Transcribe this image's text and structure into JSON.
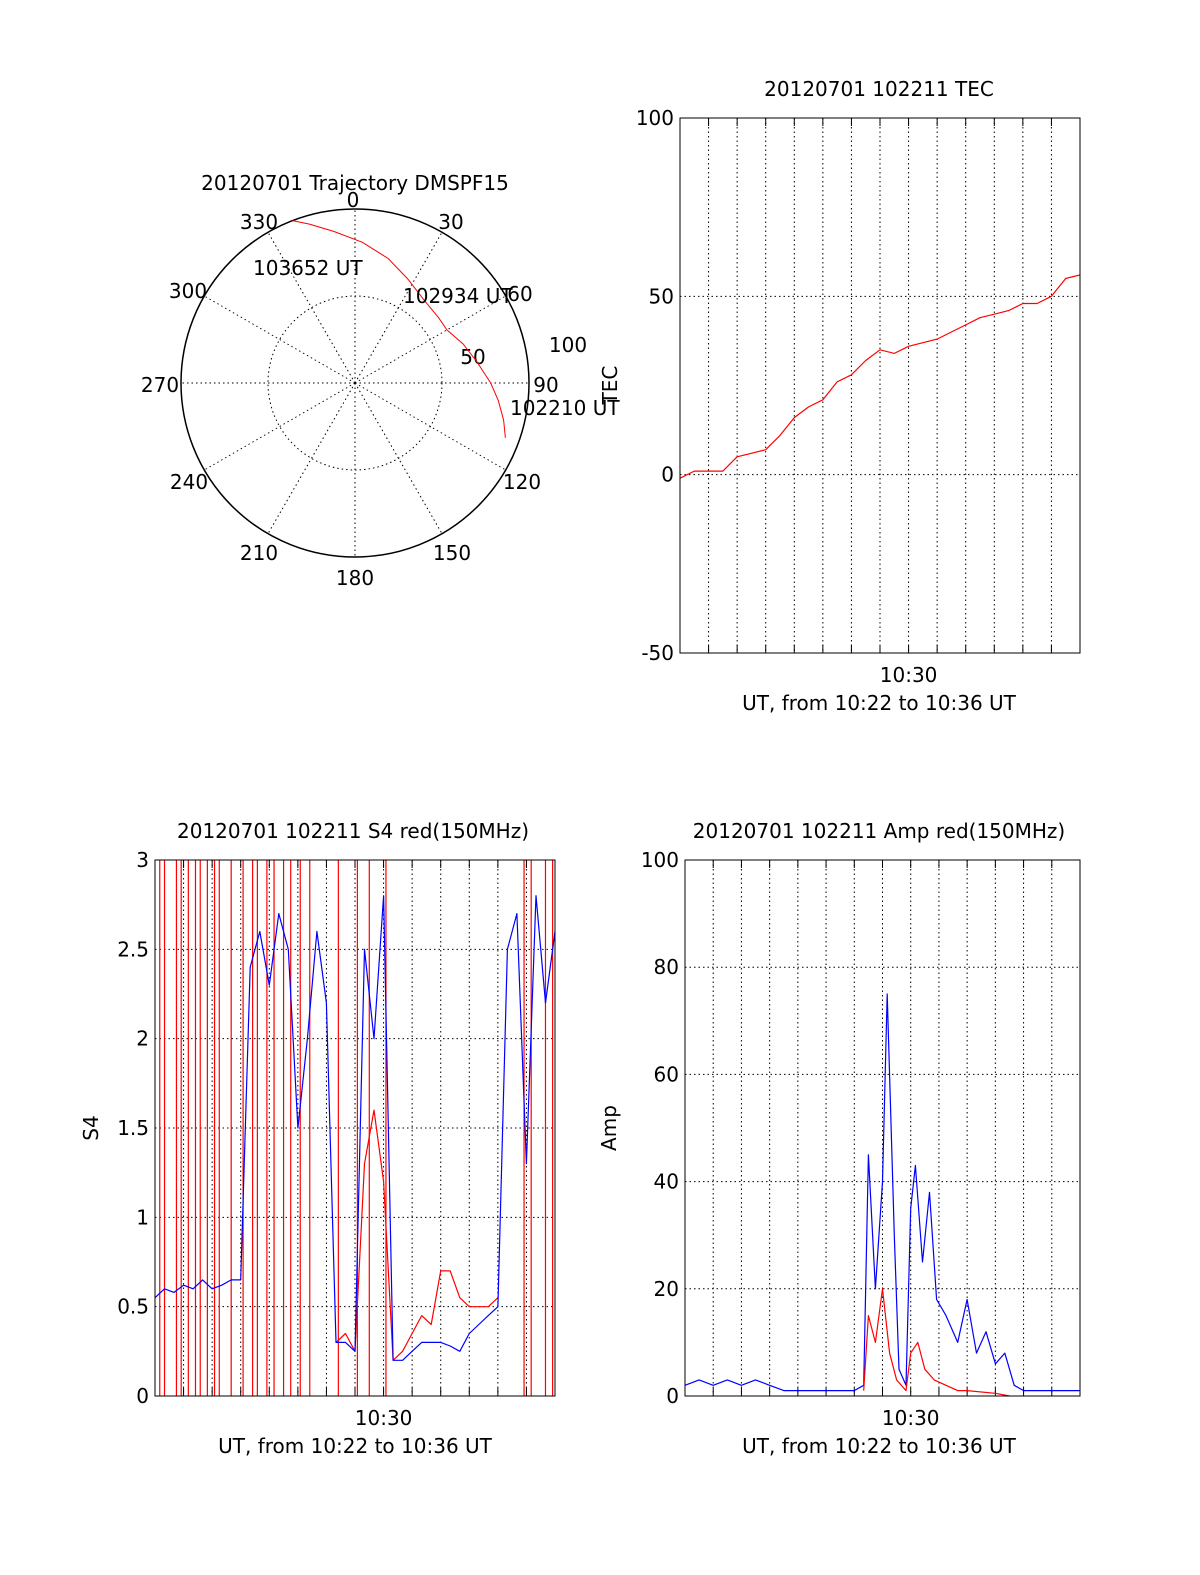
{
  "colors": {
    "red": "#ff0000",
    "blue": "#0000ff",
    "axis": "#000000"
  },
  "chart_data": [
    {
      "id": "trajectory",
      "type": "polar",
      "title": "20120701 Trajectory DMSPF15",
      "angle_labels": [
        "0",
        "30",
        "60",
        "90",
        "120",
        "150",
        "180",
        "210",
        "240",
        "270",
        "300",
        "330"
      ],
      "radial_labels": [
        "50",
        "100"
      ],
      "r_max": 100,
      "trajectory": [
        {
          "azimuth": 110,
          "zenith": 92
        },
        {
          "azimuth": 104,
          "zenith": 88
        },
        {
          "azimuth": 97,
          "zenith": 83
        },
        {
          "azimuth": 90,
          "zenith": 78
        },
        {
          "azimuth": 80,
          "zenith": 71
        },
        {
          "azimuth": 70,
          "zenith": 66
        },
        {
          "azimuth": 60,
          "zenith": 61
        },
        {
          "azimuth": 52,
          "zenith": 61
        },
        {
          "azimuth": 40,
          "zenith": 62
        },
        {
          "azimuth": 27,
          "zenith": 67
        },
        {
          "azimuth": 15,
          "zenith": 74
        },
        {
          "azimuth": 3,
          "zenith": 81
        },
        {
          "azimuth": -8,
          "zenith": 88
        },
        {
          "azimuth": -16,
          "zenith": 95
        },
        {
          "azimuth": -21,
          "zenith": 100
        }
      ],
      "annotations": [
        {
          "text": "103652 UT",
          "azimuth": -17,
          "zenith": 100
        },
        {
          "text": "102934 UT",
          "azimuth": 47,
          "zenith": 92
        },
        {
          "text": "102210 UT",
          "azimuth": 110,
          "zenith": 92
        }
      ]
    },
    {
      "id": "tec",
      "type": "line",
      "title": "20120701 102211 TEC",
      "xlabel": "UT, from 10:22 to 10:36 UT",
      "ylabel": "TEC",
      "xlim": [
        "10:22",
        "10:36"
      ],
      "ylim": [
        -50,
        100
      ],
      "yticks": [
        "-50",
        "0",
        "50",
        "100"
      ],
      "xtick_labels": [
        {
          "label": "10:30",
          "time": "10:30"
        }
      ],
      "grid": true,
      "series": [
        {
          "color": "red",
          "points": [
            [
              "10:22:00",
              -1
            ],
            [
              "10:22:30",
              1
            ],
            [
              "10:23:00",
              1
            ],
            [
              "10:23:30",
              1
            ],
            [
              "10:24:00",
              5
            ],
            [
              "10:24:30",
              6
            ],
            [
              "10:25:00",
              7
            ],
            [
              "10:25:30",
              11
            ],
            [
              "10:26:00",
              16
            ],
            [
              "10:26:30",
              19
            ],
            [
              "10:27:00",
              21
            ],
            [
              "10:27:30",
              26
            ],
            [
              "10:28:00",
              28
            ],
            [
              "10:28:30",
              32
            ],
            [
              "10:29:00",
              35
            ],
            [
              "10:29:30",
              34
            ],
            [
              "10:30:00",
              36
            ],
            [
              "10:30:30",
              37
            ],
            [
              "10:31:00",
              38
            ],
            [
              "10:31:30",
              40
            ],
            [
              "10:32:00",
              42
            ],
            [
              "10:32:30",
              44
            ],
            [
              "10:33:00",
              45
            ],
            [
              "10:33:30",
              46
            ],
            [
              "10:34:00",
              48
            ],
            [
              "10:34:30",
              48
            ],
            [
              "10:35:00",
              50
            ],
            [
              "10:35:30",
              55
            ],
            [
              "10:36:00",
              56
            ]
          ]
        }
      ]
    },
    {
      "id": "s4",
      "type": "line",
      "title": "20120701 102211 S4 red(150MHz)",
      "xlabel": "UT, from 10:22 to 10:36 UT",
      "ylabel": "S4",
      "xlim": [
        "10:22",
        "10:36"
      ],
      "ylim": [
        0,
        3
      ],
      "yticks": [
        "0",
        "0.5",
        "1",
        "1.5",
        "2",
        "2.5",
        "3"
      ],
      "xtick_labels": [
        {
          "label": "10:30",
          "time": "10:30"
        }
      ],
      "grid": true,
      "series": [
        {
          "color": "red",
          "points": [
            [
              "10:28:20",
              0.3
            ],
            [
              "10:28:40",
              0.35
            ],
            [
              "10:29:00",
              0.25
            ],
            [
              "10:29:20",
              1.3
            ],
            [
              "10:29:40",
              1.6
            ],
            [
              "10:30:00",
              1.2
            ],
            [
              "10:30:20",
              0.2
            ],
            [
              "10:30:40",
              0.25
            ],
            [
              "10:31:00",
              0.35
            ],
            [
              "10:31:20",
              0.45
            ],
            [
              "10:31:40",
              0.4
            ],
            [
              "10:32:00",
              0.7
            ],
            [
              "10:32:20",
              0.7
            ],
            [
              "10:32:40",
              0.55
            ],
            [
              "10:33:00",
              0.5
            ],
            [
              "10:33:20",
              0.5
            ],
            [
              "10:33:40",
              0.5
            ],
            [
              "10:34:00",
              0.55
            ]
          ],
          "spikes": [
            "10:22:10",
            "10:22:20",
            "10:22:45",
            "10:22:55",
            "10:23:10",
            "10:23:25",
            "10:23:35",
            "10:23:50",
            "10:24:05",
            "10:24:15",
            "10:24:40",
            "10:25:05",
            "10:25:25",
            "10:25:35",
            "10:25:55",
            "10:26:10",
            "10:26:30",
            "10:26:45",
            "10:27:05",
            "10:27:25",
            "10:28:25",
            "10:29:05",
            "10:29:30",
            "10:30:05",
            "10:34:55",
            "10:35:10",
            "10:35:40",
            "10:35:55"
          ]
        },
        {
          "color": "blue",
          "points": [
            [
              "10:22:00",
              0.55
            ],
            [
              "10:22:20",
              0.6
            ],
            [
              "10:22:40",
              0.58
            ],
            [
              "10:23:00",
              0.62
            ],
            [
              "10:23:20",
              0.6
            ],
            [
              "10:23:40",
              0.65
            ],
            [
              "10:24:00",
              0.6
            ],
            [
              "10:24:20",
              0.62
            ],
            [
              "10:24:40",
              0.65
            ],
            [
              "10:25:00",
              0.65
            ],
            [
              "10:25:20",
              2.4
            ],
            [
              "10:25:40",
              2.6
            ],
            [
              "10:26:00",
              2.3
            ],
            [
              "10:26:20",
              2.7
            ],
            [
              "10:26:40",
              2.5
            ],
            [
              "10:27:00",
              1.5
            ],
            [
              "10:27:20",
              2.0
            ],
            [
              "10:27:40",
              2.6
            ],
            [
              "10:28:00",
              2.2
            ],
            [
              "10:28:20",
              0.3
            ],
            [
              "10:28:40",
              0.3
            ],
            [
              "10:29:00",
              0.25
            ],
            [
              "10:29:20",
              2.5
            ],
            [
              "10:29:40",
              2.0
            ],
            [
              "10:30:00",
              2.8
            ],
            [
              "10:30:20",
              0.2
            ],
            [
              "10:30:40",
              0.2
            ],
            [
              "10:31:00",
              0.25
            ],
            [
              "10:31:20",
              0.3
            ],
            [
              "10:31:40",
              0.3
            ],
            [
              "10:32:00",
              0.3
            ],
            [
              "10:32:20",
              0.28
            ],
            [
              "10:32:40",
              0.25
            ],
            [
              "10:33:00",
              0.35
            ],
            [
              "10:33:20",
              0.4
            ],
            [
              "10:33:40",
              0.45
            ],
            [
              "10:34:00",
              0.5
            ],
            [
              "10:34:20",
              2.5
            ],
            [
              "10:34:40",
              2.7
            ],
            [
              "10:35:00",
              1.3
            ],
            [
              "10:35:20",
              2.8
            ],
            [
              "10:35:40",
              2.2
            ],
            [
              "10:36:00",
              2.6
            ]
          ]
        }
      ]
    },
    {
      "id": "amp",
      "type": "line",
      "title": "20120701 102211 Amp red(150MHz)",
      "xlabel": "UT, from 10:22 to 10:36 UT",
      "ylabel": "Amp",
      "xlim": [
        "10:22",
        "10:36"
      ],
      "ylim": [
        0,
        100
      ],
      "yticks": [
        "0",
        "20",
        "40",
        "60",
        "80",
        "100"
      ],
      "xtick_labels": [
        {
          "label": "10:30",
          "time": "10:30"
        }
      ],
      "grid": true,
      "series": [
        {
          "color": "blue",
          "points": [
            [
              "10:22:00",
              2
            ],
            [
              "10:22:30",
              3
            ],
            [
              "10:23:00",
              2
            ],
            [
              "10:23:30",
              3
            ],
            [
              "10:24:00",
              2
            ],
            [
              "10:24:30",
              3
            ],
            [
              "10:25:00",
              2
            ],
            [
              "10:25:30",
              1
            ],
            [
              "10:26:00",
              1
            ],
            [
              "10:26:30",
              1
            ],
            [
              "10:27:00",
              1
            ],
            [
              "10:27:30",
              1
            ],
            [
              "10:28:00",
              1
            ],
            [
              "10:28:20",
              2
            ],
            [
              "10:28:30",
              45
            ],
            [
              "10:28:45",
              20
            ],
            [
              "10:29:00",
              40
            ],
            [
              "10:29:10",
              75
            ],
            [
              "10:29:25",
              30
            ],
            [
              "10:29:35",
              5
            ],
            [
              "10:29:50",
              2
            ],
            [
              "10:30:00",
              35
            ],
            [
              "10:30:10",
              43
            ],
            [
              "10:30:25",
              25
            ],
            [
              "10:30:40",
              38
            ],
            [
              "10:30:55",
              18
            ],
            [
              "10:31:15",
              15
            ],
            [
              "10:31:40",
              10
            ],
            [
              "10:32:00",
              18
            ],
            [
              "10:32:20",
              8
            ],
            [
              "10:32:40",
              12
            ],
            [
              "10:33:00",
              6
            ],
            [
              "10:33:20",
              8
            ],
            [
              "10:33:40",
              2
            ],
            [
              "10:34:00",
              1
            ],
            [
              "10:35:00",
              1
            ],
            [
              "10:36:00",
              1
            ]
          ]
        },
        {
          "color": "red",
          "points": [
            [
              "10:28:20",
              1
            ],
            [
              "10:28:30",
              15
            ],
            [
              "10:28:45",
              10
            ],
            [
              "10:29:00",
              20
            ],
            [
              "10:29:15",
              8
            ],
            [
              "10:29:30",
              3
            ],
            [
              "10:29:50",
              1
            ],
            [
              "10:30:00",
              8
            ],
            [
              "10:30:15",
              10
            ],
            [
              "10:30:30",
              5
            ],
            [
              "10:30:50",
              3
            ],
            [
              "10:31:15",
              2
            ],
            [
              "10:31:40",
              1
            ],
            [
              "10:32:00",
              1
            ],
            [
              "10:33:00",
              0.5
            ],
            [
              "10:33:30",
              0
            ]
          ]
        }
      ]
    }
  ]
}
